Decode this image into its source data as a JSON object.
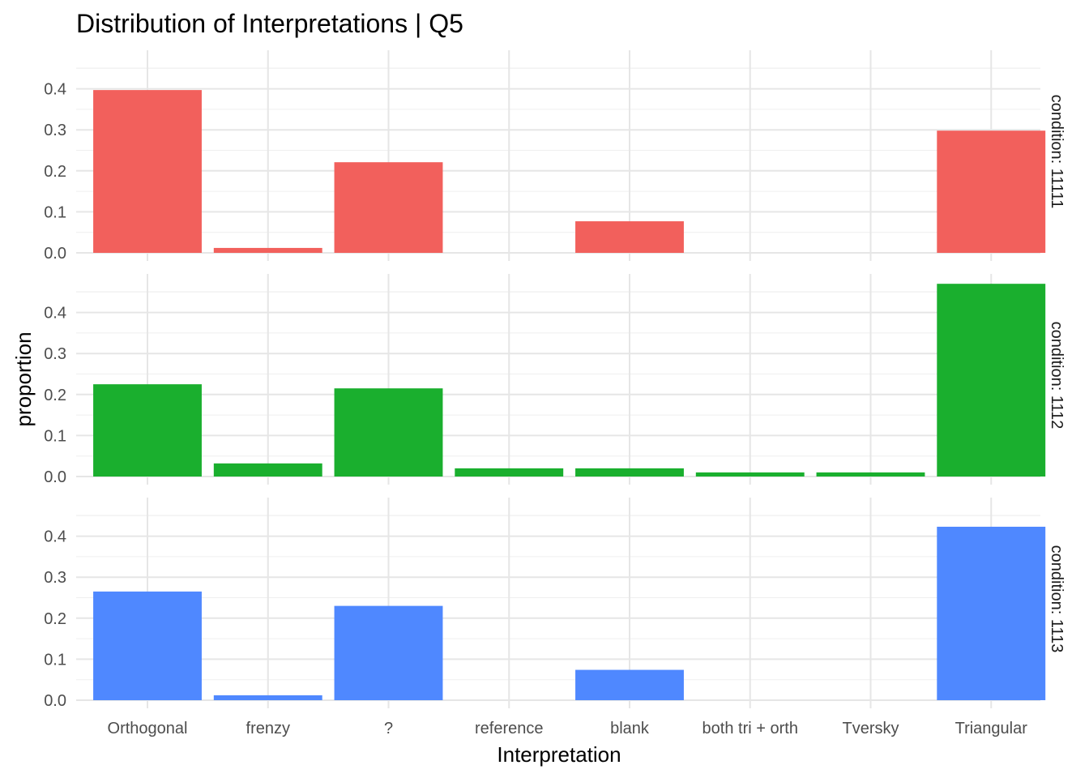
{
  "chart_data": {
    "type": "bar",
    "title": "Distribution of Interpretations | Q5",
    "xlabel": "Interpretation",
    "ylabel": "proportion",
    "categories": [
      "Orthogonal",
      "frenzy",
      "?",
      "reference",
      "blank",
      "both tri + orth",
      "Tversky",
      "Triangular"
    ],
    "y_ticks": [
      "0.0",
      "0.1",
      "0.2",
      "0.3",
      "0.4"
    ],
    "grid": true,
    "facets": [
      {
        "label": "condition: 11111",
        "color": "#F2605C",
        "ylim": [
          0,
          0.45
        ],
        "values": [
          0.397,
          0.012,
          0.221,
          0,
          0.077,
          0,
          0,
          0.298
        ]
      },
      {
        "label": "condition: 1112",
        "color": "#1AAF2E",
        "ylim": [
          0,
          0.47
        ],
        "values": [
          0.225,
          0.032,
          0.215,
          0.02,
          0.02,
          0.01,
          0.01,
          0.47
        ]
      },
      {
        "label": "condition: 1113",
        "color": "#4F88FF",
        "ylim": [
          0,
          0.45
        ],
        "values": [
          0.265,
          0.012,
          0.23,
          0,
          0.074,
          0,
          0,
          0.423
        ]
      }
    ]
  }
}
